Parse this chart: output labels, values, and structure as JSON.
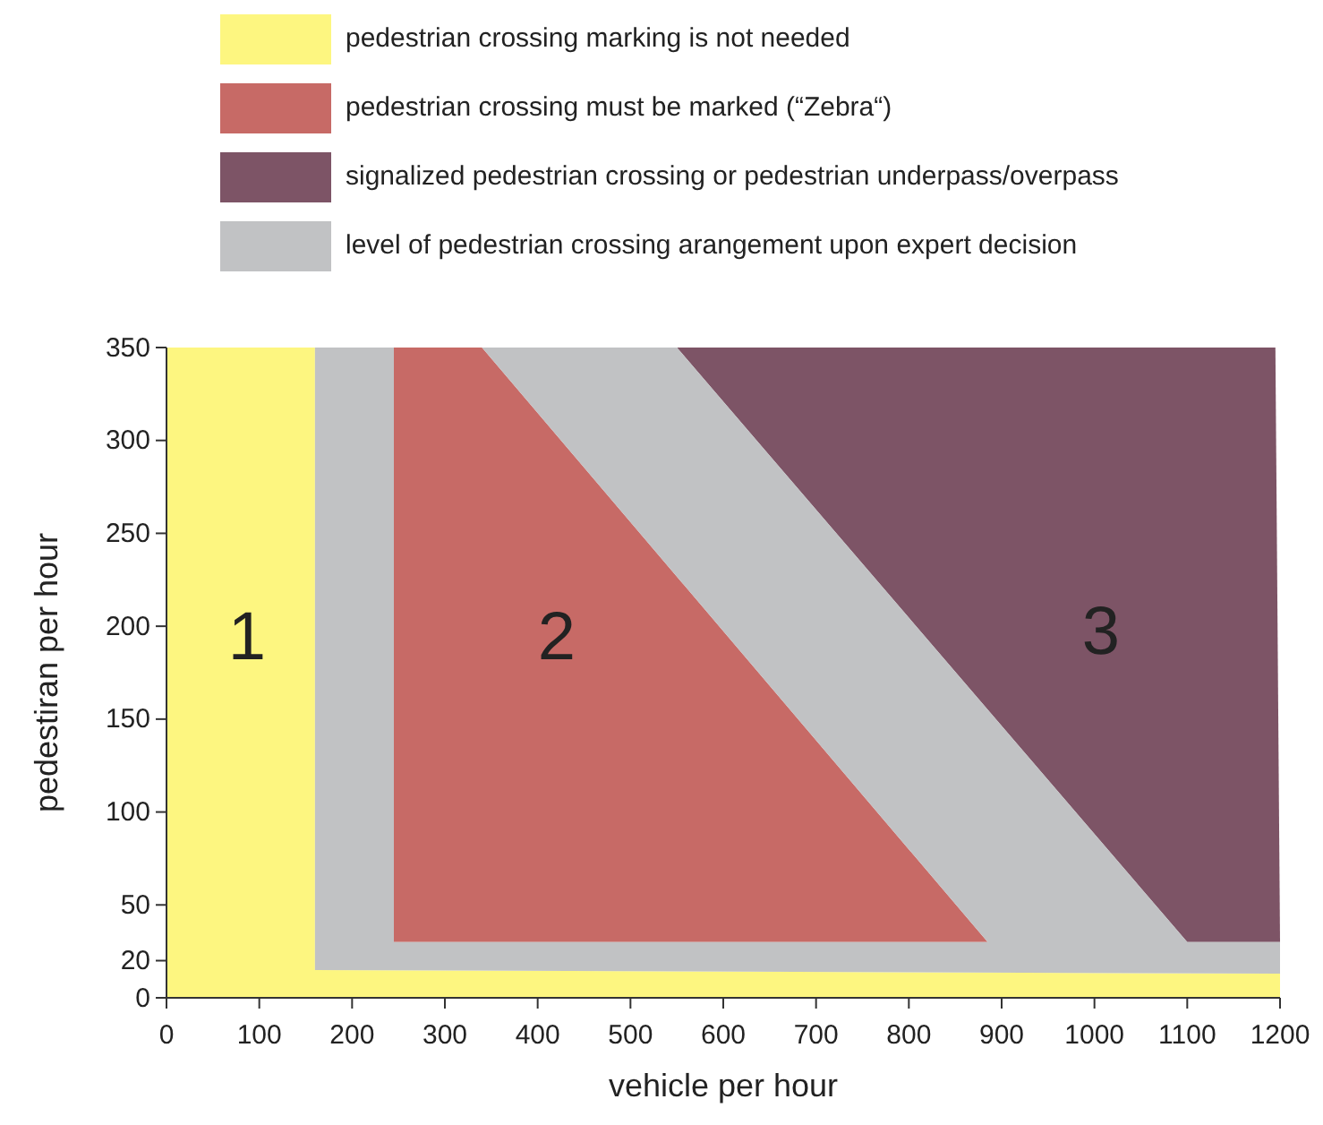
{
  "chart_data": {
    "type": "area",
    "xlabel": "vehicle per hour",
    "ylabel": "pedestiran per hour",
    "series": [
      {
        "name": "pedestrian crossing marking is not needed",
        "color": "#fdf680",
        "x": [
          0,
          0,
          160,
          160,
          1200,
          1200
        ],
        "values": [
          0,
          350,
          350,
          15,
          13,
          0
        ]
      },
      {
        "name": "pedestrian crossing must be marked (“Zebra“)",
        "color": "#c76a66",
        "x": [
          245,
          245,
          340,
          885
        ],
        "values": [
          30,
          350,
          350,
          30
        ]
      },
      {
        "name": "signalized pedestrian crossing or pedestrian underpass/overpass",
        "color": "#7d5466",
        "x": [
          550,
          1195,
          1200,
          1100
        ],
        "values": [
          350,
          350,
          30,
          30
        ]
      },
      {
        "name": "level of pedestrian crossing arangement upon expert decision",
        "color": "#c1c2c4",
        "x": [
          160,
          160,
          245,
          245,
          885,
          340,
          550,
          1100,
          1200,
          1200
        ],
        "values": [
          15,
          350,
          350,
          30,
          30,
          350,
          350,
          30,
          30,
          13
        ]
      }
    ],
    "annotations": [
      "1",
      "2",
      "3"
    ],
    "xlim": [
      0,
      1200
    ],
    "xticks": [
      0,
      100,
      200,
      300,
      400,
      500,
      600,
      700,
      800,
      900,
      1000,
      1100,
      1200
    ],
    "ylim": [
      0,
      350
    ],
    "yticks": [
      0,
      20,
      50,
      100,
      150,
      200,
      250,
      300,
      350
    ],
    "grid": false,
    "legend": "top"
  }
}
